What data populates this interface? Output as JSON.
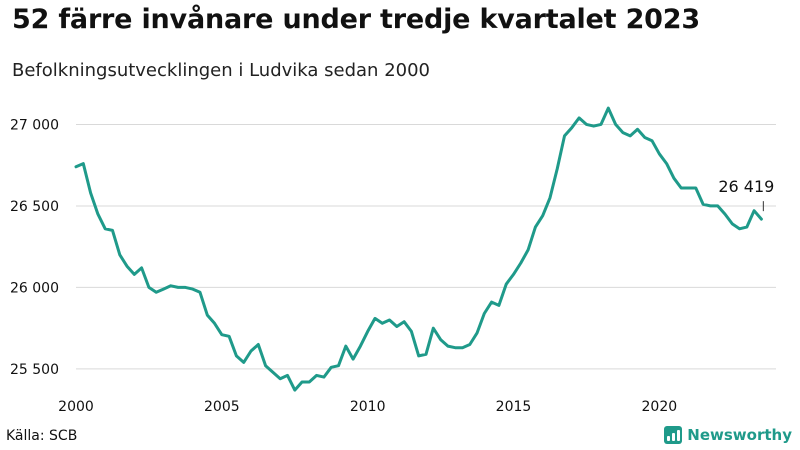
{
  "header": {
    "title": "52 färre invånare under tredje kvartalet 2023",
    "subtitle": "Befolkningsutvecklingen i Ludvika sedan 2000"
  },
  "footer": {
    "source": "Källa: SCB",
    "brand": "Newsworthy"
  },
  "colors": {
    "line": "#1f9a8a",
    "grid": "#d9d9d9",
    "brand": "#1f9a8a"
  },
  "chart_data": {
    "type": "line",
    "title": "52 färre invånare under tredje kvartalet 2023",
    "subtitle": "Befolkningsutvecklingen i Ludvika sedan 2000",
    "xlabel": "",
    "ylabel": "",
    "xlim": [
      2000,
      2024
    ],
    "ylim": [
      25340,
      27150
    ],
    "grid": true,
    "x_ticks": [
      2000,
      2005,
      2010,
      2015,
      2020
    ],
    "y_ticks": [
      25500,
      26000,
      26500,
      27000
    ],
    "y_tick_labels": [
      "25 500",
      "26 000",
      "26 500",
      "27 000"
    ],
    "x_tick_labels": [
      "2000",
      "2005",
      "2010",
      "2015",
      "2020"
    ],
    "annotation": {
      "label": "26 419",
      "x": 2023.6,
      "y": 26419
    },
    "series": [
      {
        "x": [
          2000.0,
          2000.25,
          2000.5,
          2000.75,
          2001.0,
          2001.25,
          2001.5,
          2001.75,
          2002.0,
          2002.25,
          2002.5,
          2002.75,
          2003.0,
          2003.25,
          2003.5,
          2003.75,
          2004.0,
          2004.25,
          2004.5,
          2004.75,
          2005.0,
          2005.25,
          2005.5,
          2005.75,
          2006.0,
          2006.25,
          2006.5,
          2006.75,
          2007.0,
          2007.25,
          2007.5,
          2007.75,
          2008.0,
          2008.25,
          2008.5,
          2008.75,
          2009.0,
          2009.25,
          2009.5,
          2009.75,
          2010.0,
          2010.25,
          2010.5,
          2010.75,
          2011.0,
          2011.25,
          2011.5,
          2011.75,
          2012.0,
          2012.25,
          2012.5,
          2012.75,
          2013.0,
          2013.25,
          2013.5,
          2013.75,
          2014.0,
          2014.25,
          2014.5,
          2014.75,
          2015.0,
          2015.25,
          2015.5,
          2015.75,
          2016.0,
          2016.25,
          2016.5,
          2016.75,
          2017.0,
          2017.25,
          2017.5,
          2017.75,
          2018.0,
          2018.25,
          2018.5,
          2018.75,
          2019.0,
          2019.25,
          2019.5,
          2019.75,
          2020.0,
          2020.25,
          2020.5,
          2020.75,
          2021.0,
          2021.25,
          2021.5,
          2021.75,
          2022.0,
          2022.25,
          2022.5,
          2022.75,
          2023.0,
          2023.25,
          2023.5
        ],
        "values": [
          26740,
          26760,
          26580,
          26450,
          26360,
          26350,
          26200,
          26130,
          26080,
          26120,
          26000,
          25970,
          25990,
          26010,
          26000,
          26000,
          25990,
          25970,
          25830,
          25780,
          25710,
          25700,
          25580,
          25540,
          25610,
          25650,
          25520,
          25480,
          25440,
          25460,
          25370,
          25420,
          25420,
          25460,
          25450,
          25510,
          25520,
          25640,
          25560,
          25640,
          25730,
          25810,
          25780,
          25800,
          25760,
          25790,
          25730,
          25580,
          25590,
          25750,
          25680,
          25640,
          25630,
          25630,
          25650,
          25720,
          25840,
          25910,
          25890,
          26020,
          26080,
          26150,
          26230,
          26370,
          26440,
          26550,
          26730,
          26930,
          26980,
          27040,
          27000,
          26990,
          27000,
          27100,
          27000,
          26950,
          26930,
          26970,
          26920,
          26900,
          26820,
          26760,
          26670,
          26610,
          26610,
          26610,
          26510,
          26500,
          26500,
          26450,
          26390,
          26360,
          26370,
          26471,
          26419
        ]
      }
    ]
  }
}
